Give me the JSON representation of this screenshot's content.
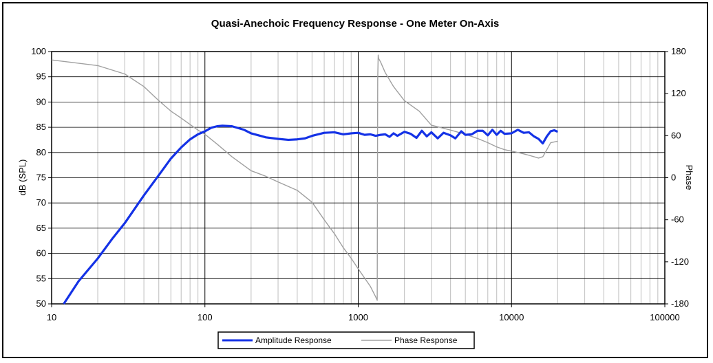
{
  "chart_data": {
    "type": "line",
    "title": "Quasi-Anechoic Frequency Response -    One Meter On-Axis",
    "xlabel": "",
    "ylabel": "dB (SPL)",
    "y2label": "Phase",
    "x_scale": "log",
    "xlim": [
      10,
      100000
    ],
    "ylim": [
      50,
      100
    ],
    "y2lim": [
      -180,
      180
    ],
    "grid": true,
    "legend_position": "bottom-center",
    "x_ticks": [
      "10",
      "100",
      "1000",
      "10000",
      "100000"
    ],
    "y_ticks": [
      "50",
      "55",
      "60",
      "65",
      "70",
      "75",
      "80",
      "85",
      "90",
      "95",
      "100"
    ],
    "y2_ticks": [
      "-180",
      "-120",
      "-60",
      "0",
      "60",
      "120",
      "180"
    ],
    "series": [
      {
        "name": "Amplitude Response",
        "color": "#1432e6",
        "axis": "left",
        "x": [
          12,
          15,
          20,
          25,
          30,
          40,
          50,
          60,
          70,
          80,
          90,
          100,
          110,
          120,
          130,
          150,
          180,
          200,
          250,
          300,
          350,
          400,
          450,
          500,
          600,
          700,
          800,
          900,
          1000,
          1100,
          1200,
          1300,
          1400,
          1500,
          1600,
          1700,
          1800,
          2000,
          2200,
          2400,
          2600,
          2800,
          3000,
          3300,
          3600,
          4000,
          4300,
          4700,
          5000,
          5500,
          6000,
          6500,
          7000,
          7500,
          8000,
          8500,
          9000,
          10000,
          11000,
          12000,
          13000,
          14000,
          15000,
          16000,
          17000,
          18000,
          19000,
          20000
        ],
        "values": [
          50,
          54.5,
          59,
          63,
          66,
          71.5,
          75.5,
          78.8,
          81,
          82.6,
          83.6,
          84.2,
          84.9,
          85.2,
          85.3,
          85.2,
          84.5,
          83.8,
          83,
          82.7,
          82.5,
          82.6,
          82.8,
          83.3,
          83.9,
          84,
          83.6,
          83.8,
          83.9,
          83.5,
          83.6,
          83.3,
          83.5,
          83.6,
          83.1,
          83.8,
          83.3,
          84.1,
          83.7,
          82.9,
          84.3,
          83.2,
          84,
          82.8,
          83.9,
          83.4,
          82.8,
          84.2,
          83.5,
          83.6,
          84.3,
          84.3,
          83.4,
          84.5,
          83.5,
          84.3,
          83.7,
          83.8,
          84.5,
          83.9,
          84.0,
          83.2,
          82.7,
          81.8,
          83.2,
          84.2,
          84.4,
          84.1
        ]
      },
      {
        "name": "Phase Response",
        "color": "#a0a0a0",
        "axis": "right",
        "x": [
          10,
          20,
          30,
          40,
          50,
          60,
          70,
          80,
          90,
          100,
          120,
          150,
          200,
          250,
          300,
          400,
          500,
          600,
          700,
          800,
          900,
          1000,
          1200,
          1300,
          1330,
          1340,
          1350,
          1360,
          1400,
          1500,
          1700,
          2000,
          2500,
          3000,
          4000,
          5000,
          6000,
          7000,
          8000,
          9000,
          10000,
          11000,
          12000,
          13000,
          14000,
          15000,
          16000,
          17000,
          18000,
          20000
        ],
        "values": [
          168,
          160,
          148,
          130,
          110,
          95,
          85,
          76,
          68,
          62,
          48,
          30,
          10,
          2,
          -6,
          -18,
          -35,
          -60,
          -80,
          -100,
          -115,
          -130,
          -155,
          -170,
          -175,
          140,
          175,
          170,
          165,
          150,
          130,
          110,
          95,
          75,
          68,
          62,
          56,
          50,
          44,
          40,
          38,
          36,
          34,
          32,
          30,
          28,
          30,
          40,
          50,
          52
        ]
      }
    ]
  }
}
